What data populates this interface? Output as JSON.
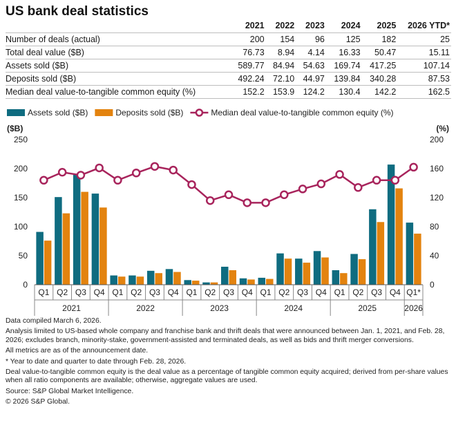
{
  "title": "US bank deal statistics",
  "table": {
    "columns": [
      "2021",
      "2022",
      "2023",
      "2024",
      "2025",
      "2026 YTD*"
    ],
    "rows": [
      {
        "label": "Number of deals (actual)",
        "values": [
          "200",
          "154",
          "96",
          "125",
          "182",
          "25"
        ]
      },
      {
        "label": "Total deal value ($B)",
        "values": [
          "76.73",
          "8.94",
          "4.14",
          "16.33",
          "50.47",
          "15.11"
        ]
      },
      {
        "label": "Assets sold ($B)",
        "values": [
          "589.77",
          "84.94",
          "54.63",
          "169.74",
          "417.25",
          "107.14"
        ]
      },
      {
        "label": "Deposits sold ($B)",
        "values": [
          "492.24",
          "72.10",
          "44.97",
          "139.84",
          "340.28",
          "87.53"
        ]
      },
      {
        "label": "Median deal value-to-tangible common equity (%)",
        "values": [
          "152.2",
          "153.9",
          "124.2",
          "130.4",
          "142.2",
          "162.5"
        ]
      }
    ]
  },
  "chart_data": {
    "type": "bar",
    "legend": [
      "Assets sold ($B)",
      "Deposits sold ($B)",
      "Median deal value-to-tangible common equity (%)"
    ],
    "left_axis_unit": "($B)",
    "right_axis_unit": "(%)",
    "left_ticks": [
      "0",
      "50",
      "100",
      "150",
      "200",
      "250"
    ],
    "right_ticks": [
      "0",
      "40",
      "80",
      "120",
      "160",
      "200"
    ],
    "ylim_left": [
      0,
      250
    ],
    "ylim_right": [
      0,
      200
    ],
    "quarters": [
      "Q1",
      "Q2",
      "Q3",
      "Q4",
      "Q1",
      "Q2",
      "Q3",
      "Q4",
      "Q1",
      "Q2",
      "Q3",
      "Q4",
      "Q1",
      "Q2",
      "Q3",
      "Q4",
      "Q1",
      "Q2",
      "Q3",
      "Q4",
      "Q1*"
    ],
    "years": [
      {
        "label": "2021",
        "count": 4
      },
      {
        "label": "2022",
        "count": 4
      },
      {
        "label": "2023",
        "count": 4
      },
      {
        "label": "2024",
        "count": 4
      },
      {
        "label": "2025",
        "count": 4
      },
      {
        "label": "2026",
        "count": 1
      }
    ],
    "series": [
      {
        "name": "Assets sold ($B)",
        "type": "bar",
        "axis": "left",
        "color": "#0f6c80",
        "values": [
          91,
          151,
          190,
          157,
          16,
          16,
          24,
          27,
          8,
          4,
          31,
          11,
          12,
          54,
          45,
          58,
          25,
          53,
          130,
          207,
          107
        ]
      },
      {
        "name": "Deposits sold ($B)",
        "type": "bar",
        "axis": "left",
        "color": "#e3830f",
        "values": [
          76,
          123,
          160,
          133,
          14,
          14,
          20,
          22,
          7,
          4,
          25,
          9,
          10,
          45,
          38,
          47,
          20,
          44,
          108,
          166,
          88
        ]
      },
      {
        "name": "Median deal value-to-tangible common equity (%)",
        "type": "line",
        "axis": "right",
        "color": "#a8245c",
        "values": [
          144,
          155,
          151,
          161,
          144,
          154,
          163,
          158,
          138,
          116,
          124,
          113,
          113,
          124,
          132,
          139,
          152,
          134,
          144,
          144,
          162
        ]
      }
    ]
  },
  "notes": [
    "Data compiled March 6, 2026.",
    "Analysis limited to US-based whole company and franchise bank and thrift deals that were announced between Jan. 1, 2021, and Feb. 28, 2026; excludes branch, minority-stake, government-assisted and terminated deals, as well as bids and thrift merger conversions.",
    "All metrics are as of the announcement date.",
    "* Year to date and quarter to date through Feb. 28, 2026.",
    "Deal value-to-tangible common equity is the deal value as a percentage of tangible common equity acquired; derived from per-share values when all ratio components are available; otherwise, aggregate values are used.",
    "Source: S&P Global Market Intelligence.",
    "© 2026 S&P Global."
  ]
}
